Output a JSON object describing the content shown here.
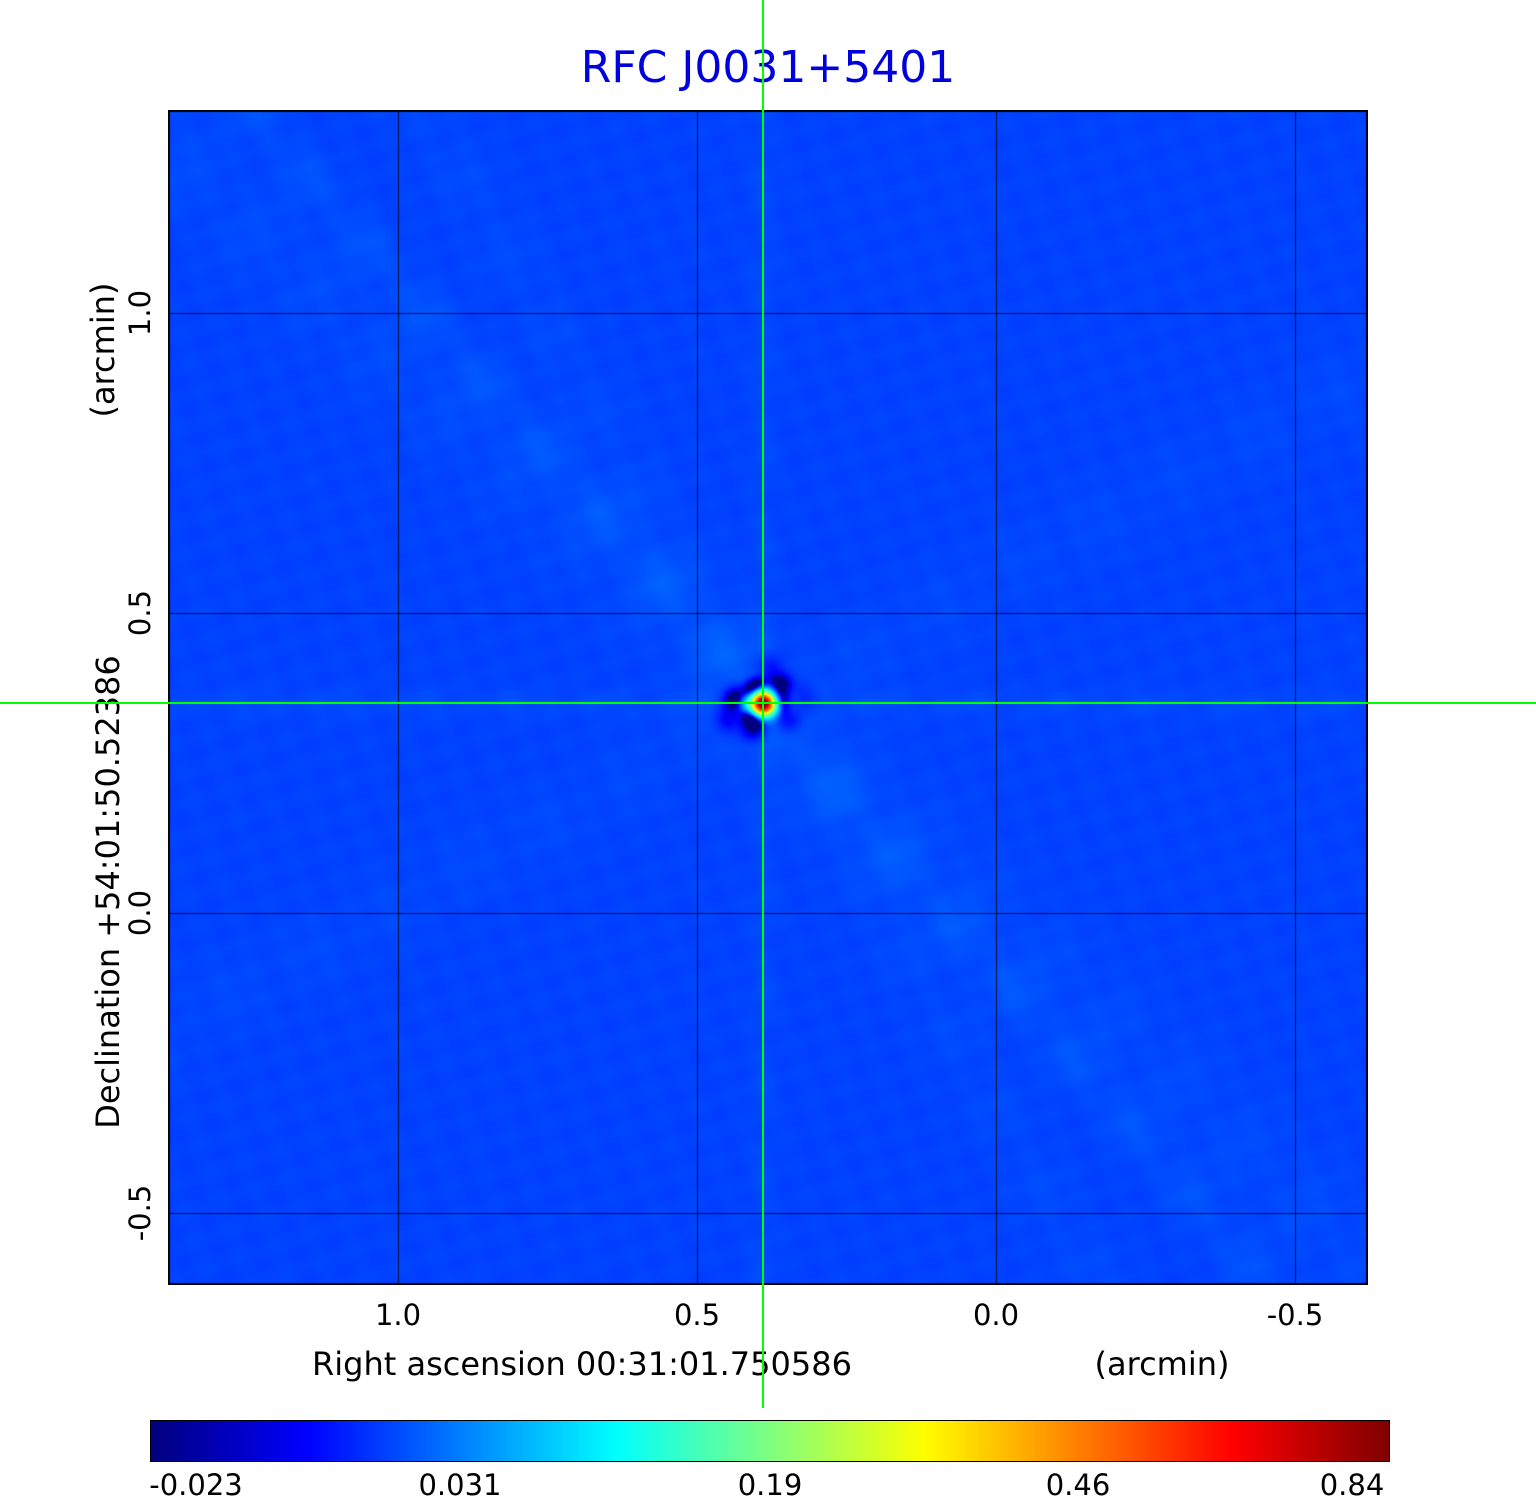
{
  "figure": {
    "title": "RFC J0031+5401",
    "title_color": "#0000dd",
    "background": "#ffffff"
  },
  "axes": {
    "x_label": "Right ascension  00:31:01.750586",
    "x_unit": "(arcmin)",
    "x_ticks": [
      "1.0",
      "0.5",
      "0.0",
      "-0.5"
    ],
    "y_label": "Declination  +54:01:50.52386",
    "y_unit": "(arcmin)",
    "y_ticks": [
      "1.0",
      "0.5",
      "0.0",
      "-0.5"
    ],
    "tick_color": "#000000"
  },
  "colorbar": {
    "tick_labels": [
      "-0.023",
      "0.031",
      "0.19",
      "0.46",
      "0.84"
    ]
  },
  "chart_data": {
    "type": "heatmap",
    "title": "RFC J0031+5401",
    "xlabel": "Right ascension 00:31:01.750586 (arcmin)",
    "ylabel": "Declination +54:01:50.52386 (arcmin)",
    "x_range_arcmin": [
      1.39,
      -0.62
    ],
    "y_range_arcmin": [
      -0.63,
      1.34
    ],
    "grid": true,
    "grid_x_ticks_arcmin": [
      1.0,
      0.5,
      0.0,
      -0.5
    ],
    "grid_y_ticks_arcmin": [
      1.0,
      0.5,
      0.0,
      -0.5
    ],
    "colormap": "jet",
    "color_scale": "sqrt",
    "vmin": -0.023,
    "vmax": 0.84,
    "colorbar_ticks": [
      -0.023,
      0.031,
      0.19,
      0.46,
      0.84
    ],
    "background_level": 0.0,
    "source": {
      "ra_offset_arcmin": 0.39,
      "dec_offset_arcmin": 0.35,
      "peak": 0.84
    },
    "crosshair": {
      "ra_offset_arcmin": 0.39,
      "dec_offset_arcmin": 0.35,
      "color": "#00ff00"
    }
  }
}
